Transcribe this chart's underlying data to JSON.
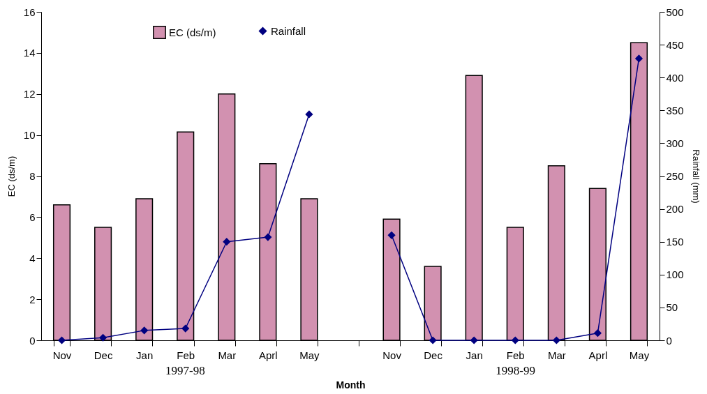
{
  "chart_data": {
    "type": "bar",
    "xlabel": "Month",
    "ylabel": "EC (ds/m)",
    "y2label": "Rainfall (mm)",
    "categories": [
      "Nov",
      "Dec",
      "Jan",
      "Feb",
      "Mar",
      "Aprl",
      "May",
      null,
      "Nov",
      "Dec",
      "Jan",
      "Feb",
      "Mar",
      "Aprl",
      "May"
    ],
    "series": [
      {
        "name": "EC (ds/m)",
        "color": "#d291b0",
        "values": [
          6.6,
          5.5,
          6.9,
          10.15,
          12.0,
          8.6,
          6.9,
          null,
          5.9,
          3.6,
          12.9,
          5.5,
          8.5,
          7.4,
          14.5
        ]
      },
      {
        "name": "Rainfall",
        "type": "line",
        "axis": "y2",
        "color": "#000080",
        "marker": "diamond",
        "values": [
          0,
          4,
          15,
          18,
          150,
          157,
          344,
          null,
          160,
          0,
          0,
          0,
          0,
          11,
          429
        ]
      }
    ],
    "ylim": [
      0,
      16
    ],
    "yticks": [
      0,
      2,
      4,
      6,
      8,
      10,
      12,
      14,
      16
    ],
    "y2lim": [
      0,
      500
    ],
    "y2ticks": [
      0,
      50,
      100,
      150,
      200,
      250,
      300,
      350,
      400,
      450,
      500
    ],
    "annotations": [
      "1997-98",
      "1998-99"
    ],
    "legend": "top",
    "grid": false
  }
}
